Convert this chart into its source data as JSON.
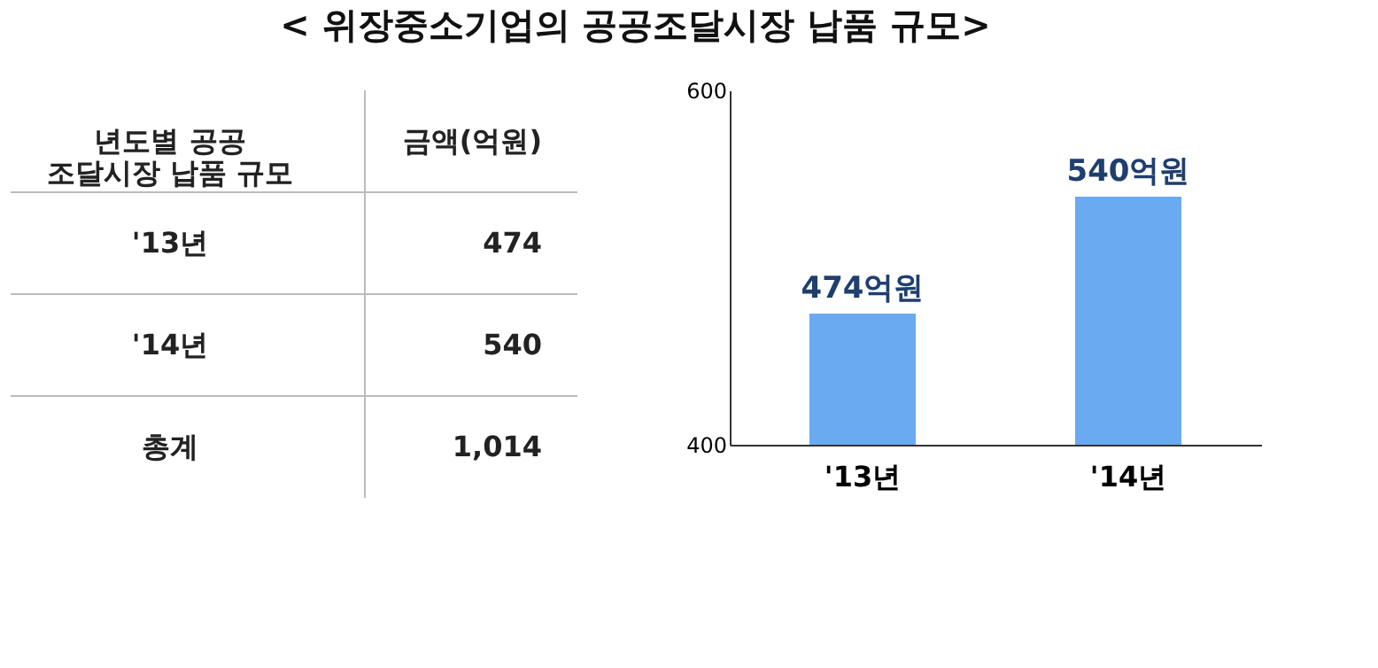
{
  "chart_data": {
    "type": "bar",
    "title": "< 위장중소기업의 공공조달시장 납품 규모>",
    "categories": [
      "'13년",
      "'14년"
    ],
    "values": [
      474,
      540
    ],
    "value_labels": [
      "474억원",
      "540억원"
    ],
    "color": "#6aaaf0",
    "ylim": [
      400,
      600
    ],
    "yticks": [
      400,
      600
    ],
    "grid": false,
    "annotations": [
      "년도별 공공\n조달시장 납품 규모",
      "금액(억원)",
      "'13년",
      "474",
      "'14년",
      "540",
      "총계",
      "1,014"
    ]
  }
}
